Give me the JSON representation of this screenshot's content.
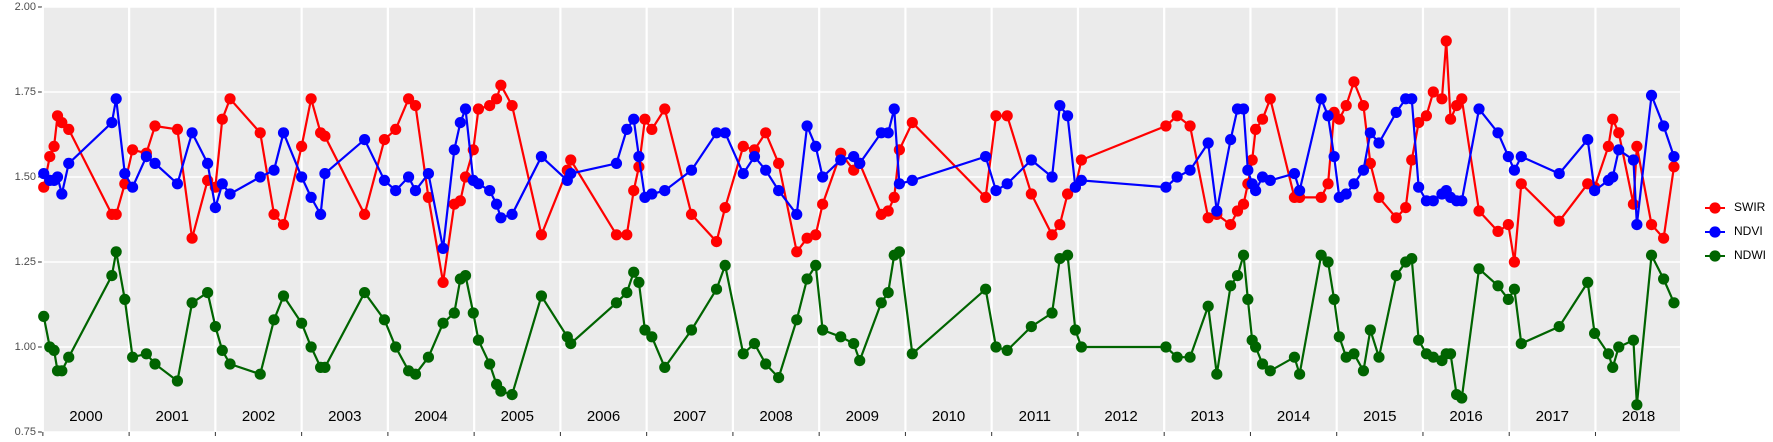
{
  "chart_data": {
    "type": "line",
    "x": [
      2000.01,
      2000.08,
      2000.13,
      2000.17,
      2000.22,
      2000.3,
      2000.8,
      2000.85,
      2000.95,
      2001.04,
      2001.2,
      2001.3,
      2001.56,
      2001.73,
      2001.91,
      2002.0,
      2002.08,
      2002.17,
      2002.52,
      2002.68,
      2002.79,
      2003.0,
      2003.11,
      2003.22,
      2003.27,
      2003.73,
      2003.96,
      2004.09,
      2004.24,
      2004.32,
      2004.47,
      2004.64,
      2004.77,
      2004.84,
      2004.9,
      2004.99,
      2005.05,
      2005.18,
      2005.26,
      2005.31,
      2005.44,
      2005.78,
      2006.08,
      2006.12,
      2006.65,
      2006.77,
      2006.85,
      2006.91,
      2006.98,
      2007.06,
      2007.21,
      2007.52,
      2007.81,
      2007.91,
      2008.12,
      2008.25,
      2008.38,
      2008.53,
      2008.74,
      2008.86,
      2008.96,
      2009.04,
      2009.25,
      2009.4,
      2009.47,
      2009.72,
      2009.8,
      2009.87,
      2009.93,
      2010.08,
      2010.93,
      2011.05,
      2011.18,
      2011.46,
      2011.7,
      2011.79,
      2011.88,
      2011.97,
      2012.04,
      2013.02,
      2013.15,
      2013.3,
      2013.51,
      2013.61,
      2013.77,
      2013.85,
      2013.92,
      2013.97,
      2014.02,
      2014.06,
      2014.14,
      2014.23,
      2014.51,
      2014.57,
      2014.82,
      2014.9,
      2014.97,
      2015.03,
      2015.11,
      2015.2,
      2015.31,
      2015.39,
      2015.49,
      2015.69,
      2015.8,
      2015.87,
      2015.95,
      2016.04,
      2016.12,
      2016.22,
      2016.27,
      2016.32,
      2016.39,
      2016.45,
      2016.65,
      2016.87,
      2016.99,
      2017.06,
      2017.14,
      2017.58,
      2017.91,
      2017.99,
      2018.15,
      2018.2,
      2018.27,
      2018.44,
      2018.48,
      2018.65,
      2018.79,
      2018.91
    ],
    "series": [
      {
        "name": "SWIR",
        "color": "#ff0000",
        "values": [
          1.47,
          1.56,
          1.59,
          1.68,
          1.66,
          1.64,
          1.39,
          1.39,
          1.48,
          1.58,
          1.57,
          1.65,
          1.64,
          1.32,
          1.49,
          1.47,
          1.67,
          1.73,
          1.63,
          1.39,
          1.36,
          1.59,
          1.73,
          1.63,
          1.62,
          1.39,
          1.61,
          1.64,
          1.73,
          1.71,
          1.44,
          1.19,
          1.42,
          1.43,
          1.5,
          1.58,
          1.7,
          1.71,
          1.73,
          1.77,
          1.71,
          1.33,
          1.52,
          1.55,
          1.33,
          1.33,
          1.46,
          1.53,
          1.67,
          1.64,
          1.7,
          1.39,
          1.31,
          1.41,
          1.59,
          1.58,
          1.63,
          1.54,
          1.28,
          1.32,
          1.33,
          1.42,
          1.57,
          1.52,
          1.54,
          1.39,
          1.4,
          1.44,
          1.58,
          1.66,
          1.44,
          1.68,
          1.68,
          1.45,
          1.33,
          1.36,
          1.45,
          1.47,
          1.55,
          1.65,
          1.68,
          1.65,
          1.38,
          1.39,
          1.36,
          1.4,
          1.42,
          1.48,
          1.55,
          1.64,
          1.67,
          1.73,
          1.44,
          1.44,
          1.44,
          1.48,
          1.69,
          1.67,
          1.71,
          1.78,
          1.71,
          1.54,
          1.44,
          1.38,
          1.41,
          1.55,
          1.66,
          1.68,
          1.75,
          1.73,
          1.9,
          1.67,
          1.71,
          1.73,
          1.4,
          1.34,
          1.36,
          1.25,
          1.48,
          1.37,
          1.48,
          1.47,
          1.59,
          1.67,
          1.63,
          1.42,
          1.59,
          1.36,
          1.32,
          1.53
        ]
      },
      {
        "name": "NDVI",
        "color": "#0000ff",
        "values": [
          1.51,
          1.49,
          1.49,
          1.5,
          1.45,
          1.54,
          1.66,
          1.73,
          1.51,
          1.47,
          1.56,
          1.54,
          1.48,
          1.63,
          1.54,
          1.41,
          1.48,
          1.45,
          1.5,
          1.52,
          1.63,
          1.5,
          1.44,
          1.39,
          1.51,
          1.61,
          1.49,
          1.46,
          1.5,
          1.46,
          1.51,
          1.29,
          1.58,
          1.66,
          1.7,
          1.49,
          1.48,
          1.46,
          1.42,
          1.38,
          1.39,
          1.56,
          1.49,
          1.51,
          1.54,
          1.64,
          1.67,
          1.56,
          1.44,
          1.45,
          1.46,
          1.52,
          1.63,
          1.63,
          1.51,
          1.56,
          1.52,
          1.46,
          1.39,
          1.65,
          1.59,
          1.5,
          1.55,
          1.56,
          1.54,
          1.63,
          1.63,
          1.7,
          1.48,
          1.49,
          1.56,
          1.46,
          1.48,
          1.55,
          1.5,
          1.71,
          1.68,
          1.47,
          1.49,
          1.47,
          1.5,
          1.52,
          1.6,
          1.4,
          1.61,
          1.7,
          1.7,
          1.52,
          1.48,
          1.46,
          1.5,
          1.49,
          1.51,
          1.46,
          1.73,
          1.68,
          1.56,
          1.44,
          1.45,
          1.48,
          1.52,
          1.63,
          1.6,
          1.69,
          1.73,
          1.73,
          1.47,
          1.43,
          1.43,
          1.45,
          1.46,
          1.44,
          1.43,
          1.43,
          1.7,
          1.63,
          1.56,
          1.52,
          1.56,
          1.51,
          1.61,
          1.46,
          1.49,
          1.5,
          1.58,
          1.55,
          1.36,
          1.74,
          1.65,
          1.56
        ]
      },
      {
        "name": "NDWI",
        "color": "#006400",
        "values": [
          1.09,
          1.0,
          0.99,
          0.93,
          0.93,
          0.97,
          1.21,
          1.28,
          1.14,
          0.97,
          0.98,
          0.95,
          0.9,
          1.13,
          1.16,
          1.06,
          0.99,
          0.95,
          0.92,
          1.08,
          1.15,
          1.07,
          1.0,
          0.94,
          0.94,
          1.16,
          1.08,
          1.0,
          0.93,
          0.92,
          0.97,
          1.07,
          1.1,
          1.2,
          1.21,
          1.1,
          1.02,
          0.95,
          0.89,
          0.87,
          0.86,
          1.15,
          1.03,
          1.01,
          1.13,
          1.16,
          1.22,
          1.19,
          1.05,
          1.03,
          0.94,
          1.05,
          1.17,
          1.24,
          0.98,
          1.01,
          0.95,
          0.91,
          1.08,
          1.2,
          1.24,
          1.05,
          1.03,
          1.01,
          0.96,
          1.13,
          1.16,
          1.27,
          1.28,
          0.98,
          1.17,
          1.0,
          0.99,
          1.06,
          1.1,
          1.26,
          1.27,
          1.05,
          1.0,
          1.0,
          0.97,
          0.97,
          1.12,
          0.92,
          1.18,
          1.21,
          1.27,
          1.14,
          1.02,
          1.0,
          0.95,
          0.93,
          0.97,
          0.92,
          1.27,
          1.25,
          1.14,
          1.03,
          0.97,
          0.98,
          0.93,
          1.05,
          0.97,
          1.21,
          1.25,
          1.26,
          1.02,
          0.98,
          0.97,
          0.96,
          0.98,
          0.98,
          0.86,
          0.85,
          1.23,
          1.18,
          1.14,
          1.17,
          1.01,
          1.06,
          1.19,
          1.04,
          0.98,
          0.94,
          1.0,
          1.02,
          0.83,
          1.27,
          1.2,
          1.13
        ]
      }
    ],
    "xlim": [
      1999.99,
      2018.98
    ],
    "xticks": [
      2000,
      2001,
      2002,
      2003,
      2004,
      2005,
      2006,
      2007,
      2008,
      2009,
      2010,
      2011,
      2012,
      2013,
      2014,
      2015,
      2016,
      2017,
      2018
    ],
    "year_labels": [
      {
        "value": 2000.5,
        "label": "2000"
      },
      {
        "value": 2001.5,
        "label": "2001"
      },
      {
        "value": 2002.5,
        "label": "2002"
      },
      {
        "value": 2003.5,
        "label": "2003"
      },
      {
        "value": 2004.5,
        "label": "2004"
      },
      {
        "value": 2005.5,
        "label": "2005"
      },
      {
        "value": 2006.5,
        "label": "2006"
      },
      {
        "value": 2007.5,
        "label": "2007"
      },
      {
        "value": 2008.5,
        "label": "2008"
      },
      {
        "value": 2009.5,
        "label": "2009"
      },
      {
        "value": 2010.5,
        "label": "2010"
      },
      {
        "value": 2011.5,
        "label": "2011"
      },
      {
        "value": 2012.5,
        "label": "2012"
      },
      {
        "value": 2013.5,
        "label": "2013"
      },
      {
        "value": 2014.5,
        "label": "2014"
      },
      {
        "value": 2015.5,
        "label": "2015"
      },
      {
        "value": 2016.5,
        "label": "2016"
      },
      {
        "value": 2017.5,
        "label": "2017"
      },
      {
        "value": 2018.5,
        "label": "2018"
      }
    ],
    "ylim": [
      0.75,
      2.0
    ],
    "yticks": [
      {
        "value": 0.75,
        "label": "0.75"
      },
      {
        "value": 1.0,
        "label": "1.00"
      },
      {
        "value": 1.25,
        "label": "1.25"
      },
      {
        "value": 1.5,
        "label": "1.50"
      },
      {
        "value": 1.75,
        "label": "1.75"
      },
      {
        "value": 2.0,
        "label": "2.00"
      }
    ],
    "grid": true,
    "legend": "right"
  }
}
